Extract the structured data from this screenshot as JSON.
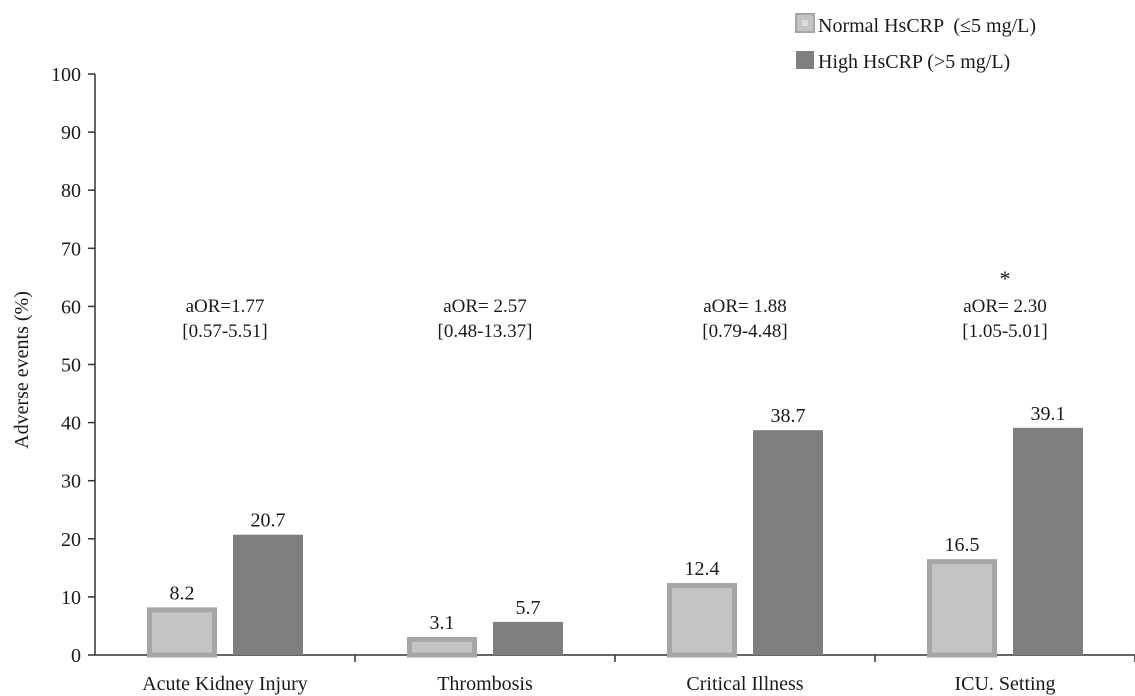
{
  "chart_data": {
    "type": "bar",
    "categories": [
      "Acute Kidney Injury",
      "Thrombosis",
      "Critical Illness",
      "ICU. Setting"
    ],
    "series": [
      {
        "name": "Normal HsCRP  (≤5 mg/L)",
        "values": [
          8.2,
          3.1,
          12.4,
          16.5
        ],
        "display": [
          "8.2",
          "3.1",
          "12.4",
          "16.5"
        ]
      },
      {
        "name": "High HsCRP (>5 mg/L)",
        "values": [
          20.7,
          5.7,
          38.7,
          39.1
        ],
        "display": [
          "20.7",
          "5.7",
          "38.7",
          "39.1"
        ]
      }
    ],
    "ylabel": "Adverse events (%)",
    "xlabel": "",
    "title": "",
    "ylim": [
      0,
      100
    ],
    "yticks": [
      "0",
      "10",
      "20",
      "30",
      "40",
      "50",
      "60",
      "70",
      "80",
      "90",
      "100"
    ],
    "annotations": [
      {
        "line1": "aOR=1.77",
        "line2": "[0.57-5.51]",
        "marker": ""
      },
      {
        "line1": "aOR= 2.57",
        "line2": "[0.48-13.37]",
        "marker": ""
      },
      {
        "line1": "aOR= 1.88",
        "line2": "[0.79-4.48]",
        "marker": ""
      },
      {
        "line1": "aOR= 2.30",
        "line2": "[1.05-5.01]",
        "marker": "*"
      }
    ],
    "legend_position": "top-right",
    "grid": false,
    "colors": {
      "normal_fill": "#c4c4c4",
      "normal_border": "#a6a6a6",
      "high_fill": "#7f7f7f",
      "axis": "#333333"
    }
  }
}
